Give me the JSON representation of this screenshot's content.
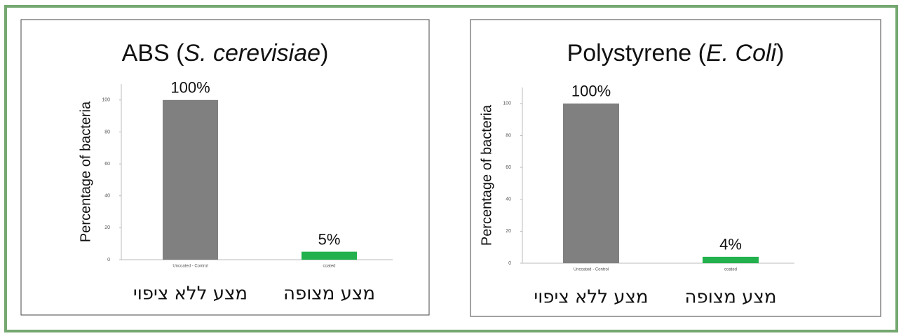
{
  "chart_data": [
    {
      "type": "bar",
      "title": [
        "ABS (",
        "S. cerevisiae",
        ")"
      ],
      "y_label": "Percentage of bacteria",
      "categories": [
        "Uncoated - Control",
        "coated"
      ],
      "category_captions": [
        "מצע ללא ציפוי",
        "מצע מצופה"
      ],
      "values": [
        100,
        5
      ],
      "value_labels": [
        "100%",
        "5%"
      ],
      "colors": [
        "#808080",
        "#22b14c"
      ],
      "ylim": [
        0,
        110
      ],
      "yticks": [
        0,
        20,
        40,
        60,
        80,
        100
      ]
    },
    {
      "type": "bar",
      "title": [
        "Polystyrene (",
        "E. Coli",
        ")"
      ],
      "y_label": "Percentage of bacteria",
      "categories": [
        "Uncoated - Control",
        "coated"
      ],
      "category_captions": [
        "מצע ללא ציפוי",
        "מצע מצופה"
      ],
      "values": [
        100,
        4
      ],
      "value_labels": [
        "100%",
        "4%"
      ],
      "colors": [
        "#808080",
        "#22b14c"
      ],
      "ylim": [
        0,
        110
      ],
      "yticks": [
        0,
        20,
        40,
        60,
        80,
        100
      ]
    }
  ]
}
